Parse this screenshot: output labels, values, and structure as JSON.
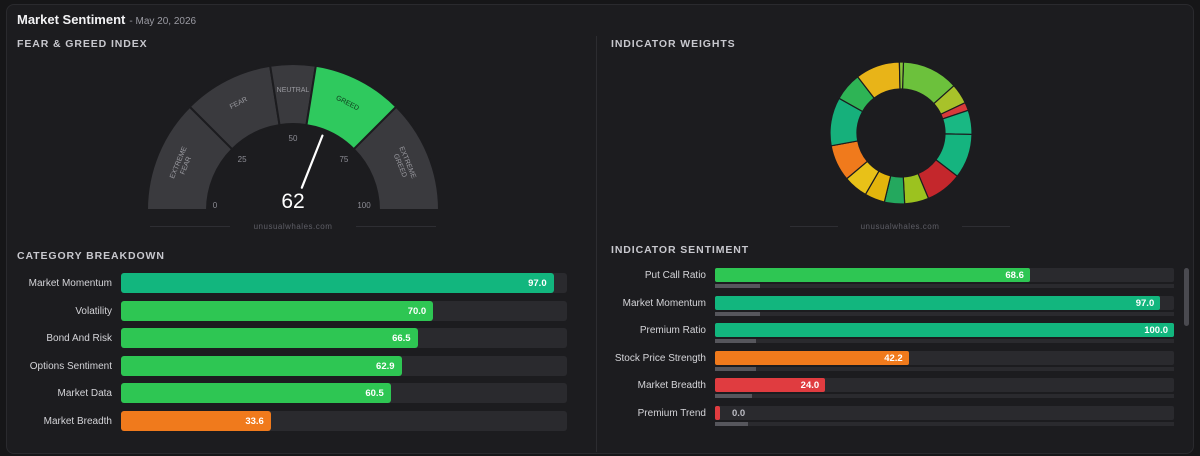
{
  "header": {
    "title": "Market Sentiment",
    "date": "- May 20, 2026"
  },
  "gauge": {
    "section_title": "FEAR & GREED INDEX",
    "value": 62,
    "value_display": "62",
    "segments": [
      {
        "name": "extreme-fear",
        "lines": [
          "EXTREME",
          "FEAR"
        ],
        "from": 0,
        "to": 25,
        "color": "#3a3a3e"
      },
      {
        "name": "fear",
        "lines": [
          "FEAR"
        ],
        "from": 25,
        "to": 45,
        "color": "#3a3a3e"
      },
      {
        "name": "neutral",
        "lines": [
          "NEUTRAL"
        ],
        "from": 45,
        "to": 55,
        "color": "#3a3a3e"
      },
      {
        "name": "greed",
        "lines": [
          "GREED"
        ],
        "from": 55,
        "to": 75,
        "color": "#2fc95e"
      },
      {
        "name": "extreme-greed",
        "lines": [
          "EXTREME",
          "GREED"
        ],
        "from": 75,
        "to": 100,
        "color": "#3a3a3e"
      }
    ],
    "ticks": [
      {
        "value": 0,
        "label": "0"
      },
      {
        "value": 25,
        "label": "25"
      },
      {
        "value": 50,
        "label": "50"
      },
      {
        "value": 75,
        "label": "75"
      },
      {
        "value": 100,
        "label": "100"
      }
    ],
    "watermark": "unusualwhales.com"
  },
  "weights": {
    "section_title": "INDICATOR WEIGHTS",
    "watermark": "unusualwhales.com",
    "slices": [
      {
        "value": 14,
        "color": "#6cc13c"
      },
      {
        "value": 5,
        "color": "#a8c22a"
      },
      {
        "value": 2,
        "color": "#d83a3a"
      },
      {
        "value": 6,
        "color": "#19b883"
      },
      {
        "value": 11,
        "color": "#15b47f"
      },
      {
        "value": 9,
        "color": "#c4272c"
      },
      {
        "value": 6,
        "color": "#9cc21f"
      },
      {
        "value": 5,
        "color": "#24a85e"
      },
      {
        "value": 5,
        "color": "#e3b50c"
      },
      {
        "value": 6,
        "color": "#e8c118"
      },
      {
        "value": 9,
        "color": "#f07a1c"
      },
      {
        "value": 12,
        "color": "#16b07b"
      },
      {
        "value": 7,
        "color": "#2eb455"
      },
      {
        "value": 11,
        "color": "#e8b418"
      },
      {
        "value": 1,
        "color": "#86c23a"
      }
    ]
  },
  "categories": {
    "section_title": "CATEGORY BREAKDOWN",
    "items": [
      {
        "label": "Market Momentum",
        "value": 97.0,
        "display": "97.0",
        "color": "#12b67e"
      },
      {
        "label": "Volatility",
        "value": 70.0,
        "display": "70.0",
        "color": "#2ec653"
      },
      {
        "label": "Bond And Risk",
        "value": 66.5,
        "display": "66.5",
        "color": "#2ec653"
      },
      {
        "label": "Options Sentiment",
        "value": 62.9,
        "display": "62.9",
        "color": "#2ec653"
      },
      {
        "label": "Market Data",
        "value": 60.5,
        "display": "60.5",
        "color": "#2ec653"
      },
      {
        "label": "Market Breadth",
        "value": 33.6,
        "display": "33.6",
        "color": "#f07a1c"
      }
    ]
  },
  "indicators": {
    "section_title": "INDICATOR SENTIMENT",
    "items": [
      {
        "label": "Put Call Ratio",
        "value": 68.6,
        "display": "68.6",
        "color": "#2ec653",
        "weight": 0.11
      },
      {
        "label": "Market Momentum",
        "value": 97.0,
        "display": "97.0",
        "color": "#12b67e",
        "weight": 0.11
      },
      {
        "label": "Premium Ratio",
        "value": 100.0,
        "display": "100.0",
        "color": "#12b67e",
        "weight": 0.1
      },
      {
        "label": "Stock Price Strength",
        "value": 42.2,
        "display": "42.2",
        "color": "#f07a1c",
        "weight": 0.1
      },
      {
        "label": "Market Breadth",
        "value": 24.0,
        "display": "24.0",
        "color": "#e03c40",
        "weight": 0.09
      },
      {
        "label": "Premium Trend",
        "value": 0.0,
        "display": "0.0",
        "color": "#e03c40",
        "weight": 0.08
      }
    ]
  }
}
